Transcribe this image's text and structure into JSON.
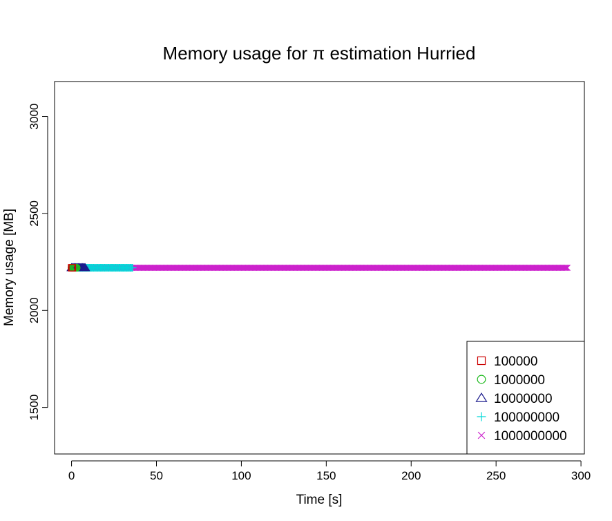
{
  "chart_data": {
    "type": "scatter",
    "title": "Memory usage for π estimation Hurried",
    "xlabel": "Time [s]",
    "ylabel": "Memory usage [MB]",
    "xlim": [
      -10,
      302
    ],
    "ylim": [
      1260,
      3180
    ],
    "xticks": [
      "0",
      "50",
      "100",
      "150",
      "200",
      "250",
      "300"
    ],
    "yticks": [
      "1500",
      "2000",
      "2500",
      "3000"
    ],
    "grid": false,
    "legend_position": "bottom-right",
    "series": [
      {
        "name": "100000",
        "symbol": "square",
        "color": "#cc0000",
        "x_start": 0,
        "x_end": 0.5,
        "y": 2220
      },
      {
        "name": "1000000",
        "symbol": "circle",
        "color": "#22bb22",
        "x_start": 0,
        "x_end": 3,
        "y": 2220
      },
      {
        "name": "10000000",
        "symbol": "triangle",
        "color": "#1a1a8c",
        "x_start": 0,
        "x_end": 8,
        "y": 2220
      },
      {
        "name": "100000000",
        "symbol": "plus",
        "color": "#00d8d8",
        "x_start": 0,
        "x_end": 36,
        "y": 2220
      },
      {
        "name": "1000000000",
        "symbol": "cross",
        "color": "#cc22cc",
        "x_start": 0,
        "x_end": 292,
        "y": 2220
      }
    ]
  }
}
